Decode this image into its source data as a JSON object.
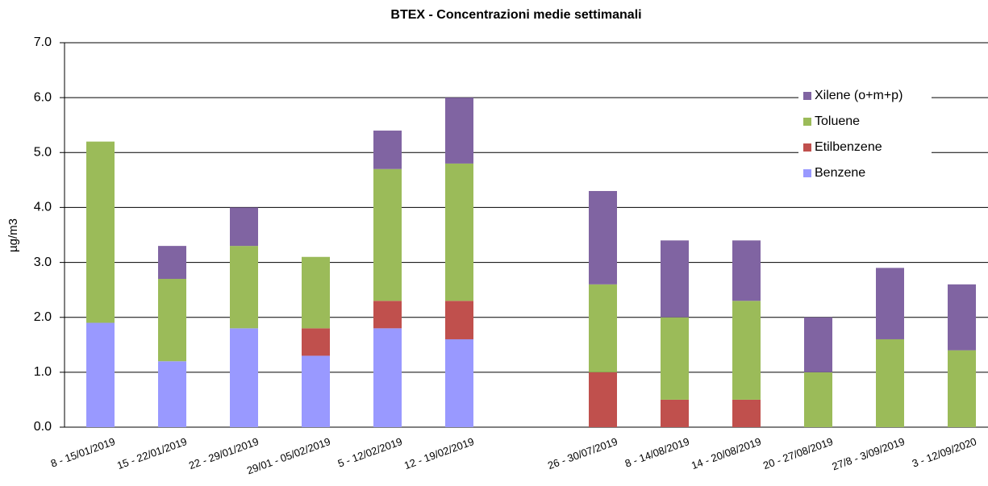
{
  "chart_data": {
    "type": "stacked_bar",
    "title": "BTEX - Concentrazioni medie settimanali",
    "y_label": "µg/m3",
    "categories": [
      "8 - 15/01/2019",
      "15 - 22/01/2019",
      "22 - 29/01/2019",
      "29/01 - 05/02/2019",
      "5 - 12/02/2019",
      "12 - 19/02/2019",
      null,
      "26 - 30/07/2019",
      "8 - 14/08/2019",
      "14 - 20/08/2019",
      "20 - 27/08/2019",
      "27/8 - 3/09/2019",
      "3 - 12/09/2020"
    ],
    "series": [
      {
        "name": "Benzene",
        "color": "#9999ff",
        "values": [
          1.9,
          1.2,
          1.8,
          1.3,
          1.8,
          1.6,
          null,
          null,
          null,
          null,
          null,
          null,
          null
        ]
      },
      {
        "name": "Etilbenzene",
        "color": "#c0504d",
        "values": [
          null,
          null,
          null,
          0.5,
          0.5,
          0.7,
          null,
          1.0,
          0.5,
          0.5,
          null,
          null,
          null
        ]
      },
      {
        "name": "Toluene",
        "color": "#9bbb59",
        "values": [
          3.3,
          1.5,
          1.5,
          1.3,
          2.4,
          2.5,
          null,
          1.6,
          1.5,
          1.8,
          1.0,
          1.6,
          1.4
        ]
      },
      {
        "name": "Xilene (o+m+p)",
        "color": "#8064a2",
        "values": [
          null,
          0.6,
          0.7,
          null,
          0.7,
          1.2,
          null,
          1.7,
          1.4,
          1.1,
          1.0,
          1.3,
          1.2
        ]
      }
    ],
    "ylim": [
      0,
      7
    ],
    "yticks": [
      {
        "value": 0,
        "label": "0.0"
      },
      {
        "value": 1,
        "label": "1.0"
      },
      {
        "value": 2,
        "label": "2.0"
      },
      {
        "value": 3,
        "label": "3.0"
      },
      {
        "value": 4,
        "label": "4.0"
      },
      {
        "value": 5,
        "label": "5.0"
      },
      {
        "value": 6,
        "label": "6.0"
      },
      {
        "value": 7,
        "label": "7.0"
      }
    ],
    "grid": true,
    "legend": "top-right"
  }
}
